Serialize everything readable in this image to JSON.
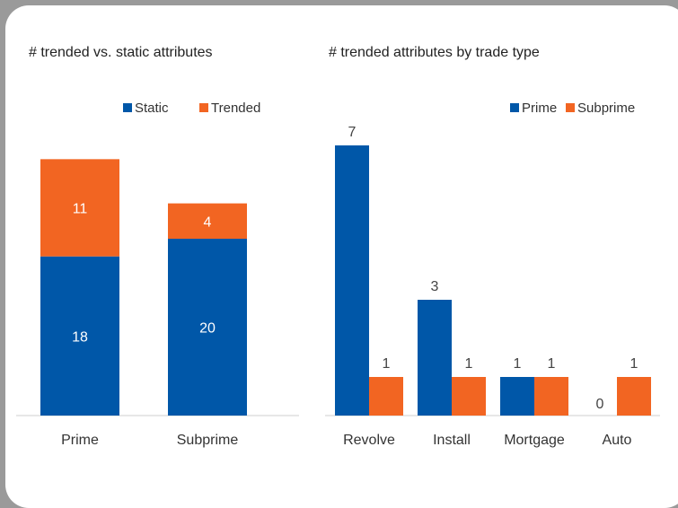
{
  "chart_data": [
    {
      "type": "bar",
      "stacked": true,
      "title": "# trended vs. static attributes",
      "categories": [
        "Prime",
        "Subprime"
      ],
      "series": [
        {
          "name": "Static",
          "values": [
            18,
            20
          ],
          "color": "#0057a8"
        },
        {
          "name": "Trended",
          "values": [
            11,
            4
          ],
          "color": "#f26522"
        }
      ],
      "ylim": [
        0,
        32
      ],
      "legend": "top-right",
      "grid": false
    },
    {
      "type": "bar",
      "title": "# trended attributes by trade type",
      "categories": [
        "Revolve",
        "Install",
        "Mortgage",
        "Auto"
      ],
      "series": [
        {
          "name": "Prime",
          "values": [
            7,
            3,
            1,
            0
          ],
          "color": "#0057a8"
        },
        {
          "name": "Subprime",
          "values": [
            1,
            1,
            1,
            1
          ],
          "color": "#f26522"
        }
      ],
      "ylim": [
        0,
        8
      ],
      "legend": "top-right",
      "grid": false
    }
  ]
}
